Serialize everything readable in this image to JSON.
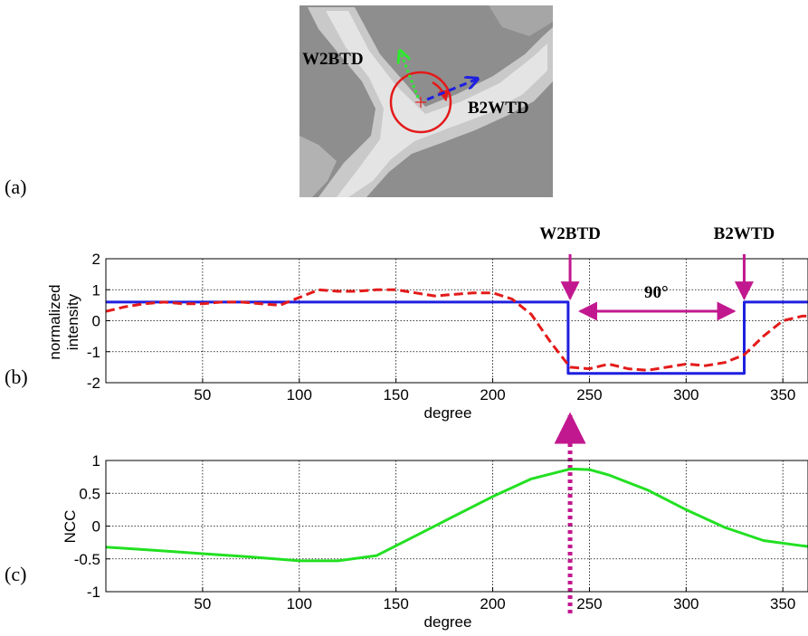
{
  "panel_labels": {
    "a": "(a)",
    "b": "(b)",
    "c": "(c)"
  },
  "image_annotations": {
    "w2btd": "W2BTD",
    "b2wtd": "B2WTD"
  },
  "colors": {
    "blue_series": "#1f1fe0",
    "red_series": "#e41a1a",
    "green_series": "#22e022",
    "magenta_annot": "#c2188f",
    "green_arrow": "#2ee82e"
  },
  "chart_data": [
    {
      "type": "line",
      "xlabel": "degree",
      "ylabel": [
        "normalized",
        "intensity"
      ],
      "xlim": [
        0,
        363
      ],
      "ylim": [
        -2,
        2
      ],
      "xticks": [
        50,
        100,
        150,
        200,
        250,
        300,
        350
      ],
      "yticks": [
        -2,
        -1,
        0,
        1,
        2
      ],
      "grid": true,
      "annotations": {
        "w2btd": "W2BTD",
        "b2wtd": "B2WTD",
        "angle": "90°",
        "w2btd_x": 240,
        "b2wtd_x": 330
      },
      "series": [
        {
          "style": "solid",
          "color": "blue",
          "x": [
            0,
            239,
            239,
            330,
            330,
            363
          ],
          "y": [
            0.6,
            0.6,
            -1.7,
            -1.7,
            0.6,
            0.6
          ]
        },
        {
          "style": "dashed",
          "color": "red",
          "x": [
            0,
            10,
            20,
            30,
            40,
            50,
            60,
            70,
            80,
            90,
            100,
            110,
            120,
            130,
            140,
            150,
            160,
            170,
            180,
            190,
            200,
            210,
            220,
            230,
            240,
            250,
            260,
            270,
            280,
            290,
            300,
            310,
            320,
            330,
            340,
            350,
            360,
            363
          ],
          "y": [
            0.3,
            0.45,
            0.55,
            0.6,
            0.55,
            0.55,
            0.6,
            0.6,
            0.55,
            0.5,
            0.75,
            1.0,
            0.95,
            0.95,
            1.0,
            1.0,
            0.9,
            0.8,
            0.85,
            0.9,
            0.9,
            0.7,
            0.2,
            -0.7,
            -1.5,
            -1.55,
            -1.4,
            -1.55,
            -1.6,
            -1.5,
            -1.4,
            -1.45,
            -1.35,
            -1.1,
            -0.5,
            0.0,
            0.15,
            0.15
          ]
        }
      ]
    },
    {
      "type": "line",
      "xlabel": "degree",
      "ylabel": "NCC",
      "xlim": [
        0,
        363
      ],
      "ylim": [
        -1,
        1
      ],
      "xticks": [
        50,
        100,
        150,
        200,
        250,
        300,
        350
      ],
      "yticks": [
        -1,
        -0.5,
        0,
        0.5,
        1
      ],
      "grid": true,
      "series": [
        {
          "style": "solid",
          "color": "green",
          "x": [
            0,
            25,
            50,
            75,
            100,
            120,
            140,
            160,
            180,
            200,
            220,
            240,
            250,
            260,
            280,
            300,
            320,
            340,
            360,
            363
          ],
          "y": [
            -0.32,
            -0.37,
            -0.42,
            -0.47,
            -0.53,
            -0.53,
            -0.45,
            -0.15,
            0.15,
            0.45,
            0.72,
            0.87,
            0.86,
            0.78,
            0.55,
            0.25,
            -0.02,
            -0.22,
            -0.3,
            -0.31
          ]
        }
      ]
    }
  ]
}
